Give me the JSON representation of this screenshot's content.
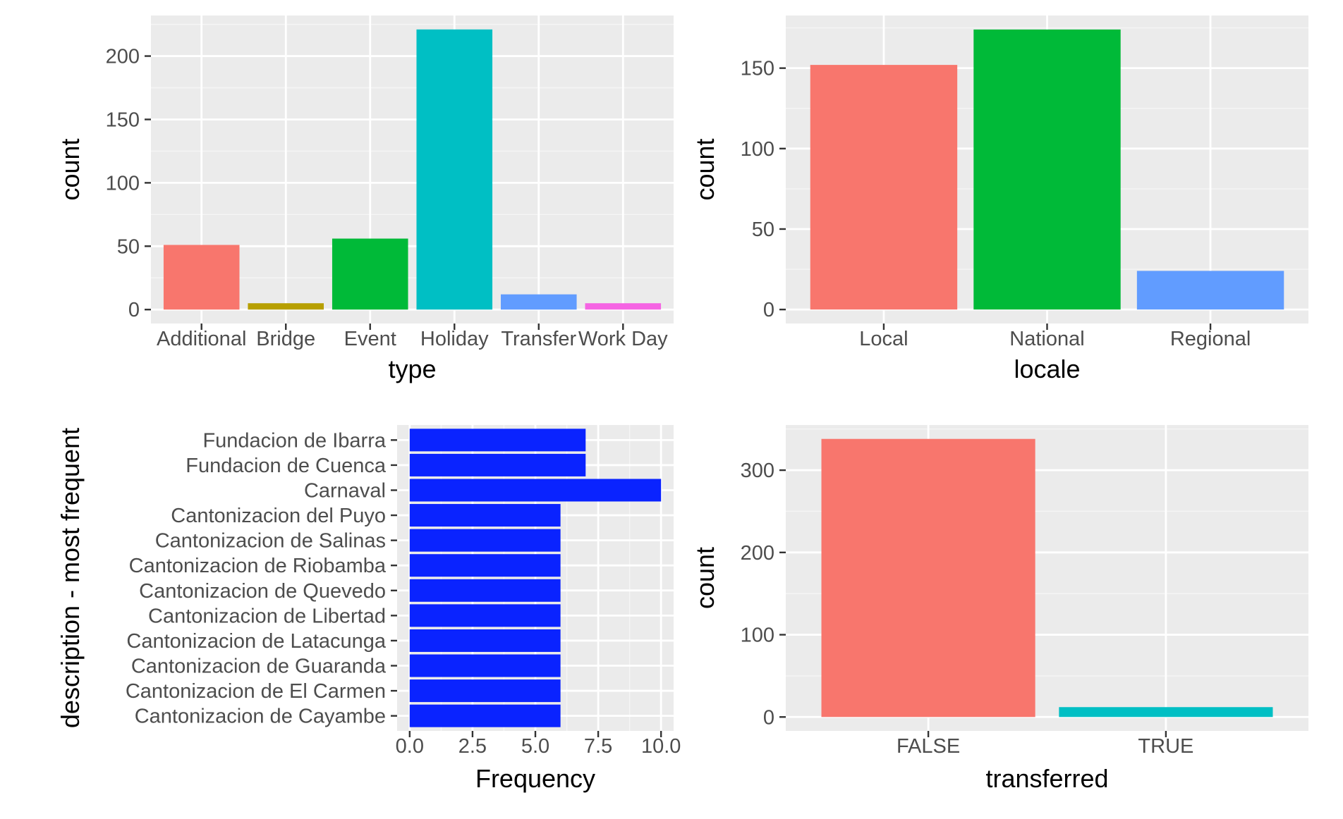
{
  "chart_data": [
    {
      "type": "bar",
      "orientation": "vertical",
      "xlabel": "type",
      "ylabel": "count",
      "categories": [
        "Additional",
        "Bridge",
        "Event",
        "Holiday",
        "Transfer",
        "Work Day"
      ],
      "values": [
        51,
        5,
        56,
        221,
        12,
        5
      ],
      "colors": [
        "#F8766D",
        "#B79F00",
        "#00BA38",
        "#00BFC4",
        "#619CFF",
        "#F564E3"
      ],
      "ylim": [
        -11,
        232
      ],
      "yticks": [
        0,
        50,
        100,
        150,
        200
      ],
      "ytick_labels": [
        "0",
        "50",
        "100",
        "150",
        "200"
      ],
      "grid": true,
      "legend": "none"
    },
    {
      "type": "bar",
      "orientation": "vertical",
      "xlabel": "locale",
      "ylabel": "count",
      "categories": [
        "Local",
        "National",
        "Regional"
      ],
      "values": [
        152,
        174,
        24
      ],
      "colors": [
        "#F8766D",
        "#00BA38",
        "#619CFF"
      ],
      "ylim": [
        -8.7,
        182.7
      ],
      "yticks": [
        0,
        50,
        100,
        150
      ],
      "ytick_labels": [
        "0",
        "50",
        "100",
        "150"
      ],
      "grid": true,
      "legend": "none"
    },
    {
      "type": "bar",
      "orientation": "horizontal",
      "xlabel": "Frequency",
      "ylabel": "description - most frequent",
      "categories": [
        "Cantonizacion de Cayambe",
        "Cantonizacion de El Carmen",
        "Cantonizacion de Guaranda",
        "Cantonizacion de Latacunga",
        "Cantonizacion de Libertad",
        "Cantonizacion de Quevedo",
        "Cantonizacion de Riobamba",
        "Cantonizacion de Salinas",
        "Cantonizacion del Puyo",
        "Carnaval",
        "Fundacion de Cuenca",
        "Fundacion de Ibarra"
      ],
      "values": [
        6,
        6,
        6,
        6,
        6,
        6,
        6,
        6,
        6,
        10,
        7,
        7
      ],
      "colors": [
        "#0A23FF"
      ],
      "xlim": [
        -0.5,
        10.5
      ],
      "xticks": [
        0,
        2.5,
        5,
        7.5,
        10
      ],
      "xtick_labels": [
        "0.0",
        "2.5",
        "5.0",
        "7.5",
        "10.0"
      ],
      "grid": true,
      "legend": "none"
    },
    {
      "type": "bar",
      "orientation": "vertical",
      "xlabel": "transferred",
      "ylabel": "count",
      "categories": [
        "FALSE",
        "TRUE"
      ],
      "values": [
        338,
        12
      ],
      "colors": [
        "#F8766D",
        "#00BFC4"
      ],
      "ylim": [
        -16.9,
        354.9
      ],
      "yticks": [
        0,
        100,
        200,
        300
      ],
      "ytick_labels": [
        "0",
        "100",
        "200",
        "300"
      ],
      "grid": true,
      "legend": "none"
    }
  ]
}
